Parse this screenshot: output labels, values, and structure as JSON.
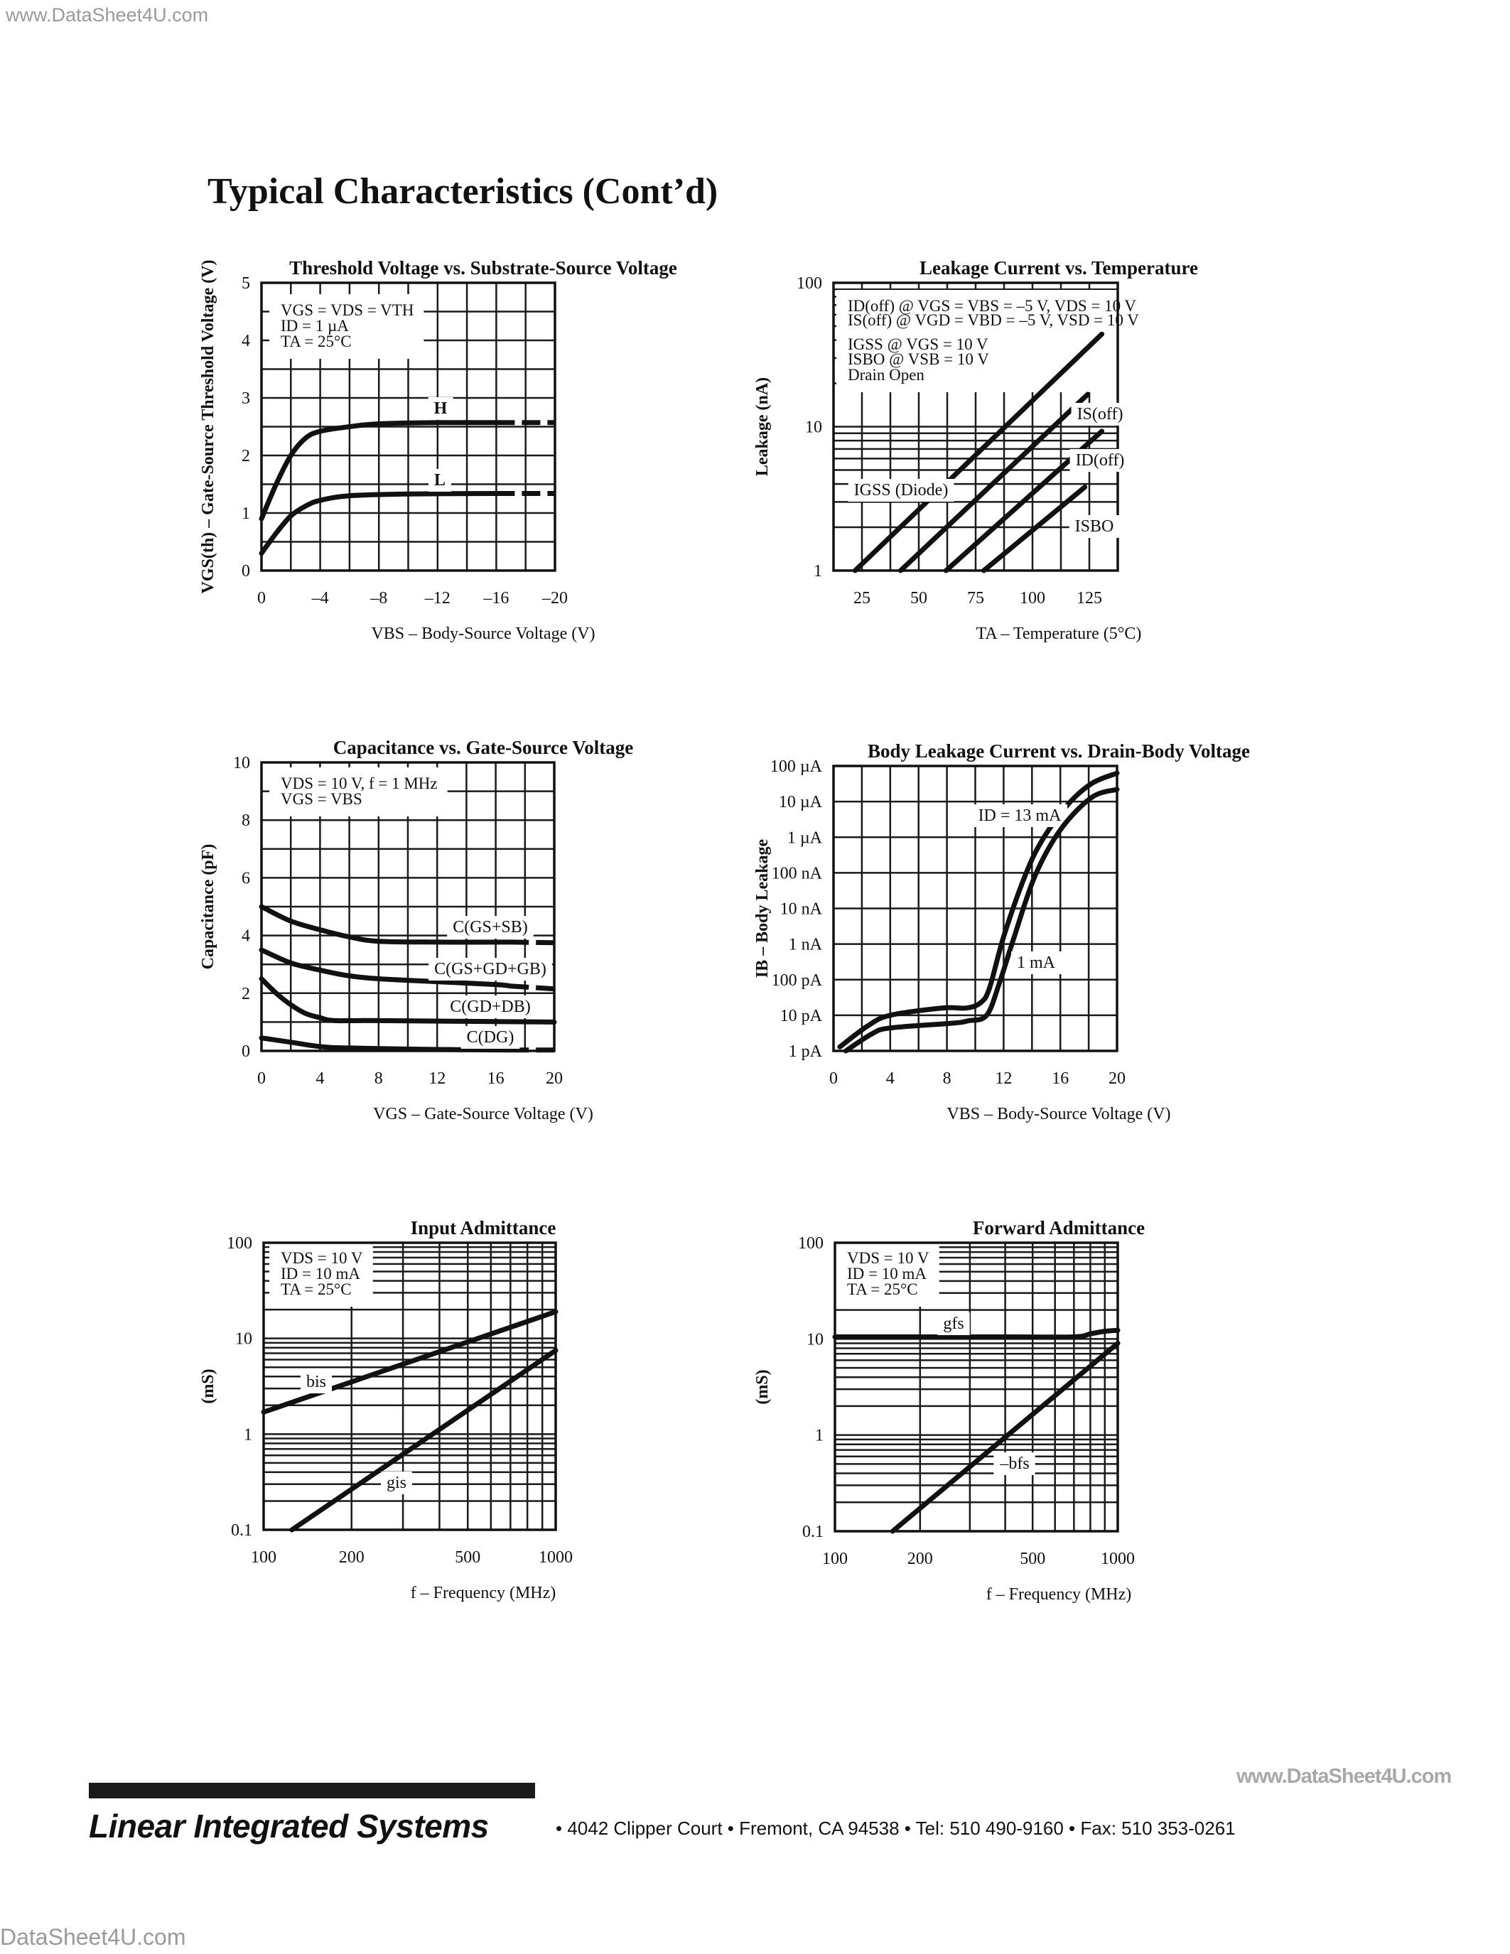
{
  "watermarks": {
    "top": "www.DataSheet4U.com",
    "right": "www.DataSheet4U.com",
    "bottom": "DataSheet4U.com"
  },
  "page_title": "Typical Characteristics (Cont’d)",
  "footer": {
    "company": "Linear Integrated Systems",
    "address": "• 4042 Clipper Court  •  Fremont, CA 94538  •  Tel: 510 490-9160  •  Fax: 510 353-0261"
  },
  "chart_data": [
    {
      "type": "line",
      "title": "Threshold Voltage vs. Substrate-Source Voltage",
      "xlabel": "VBS – Body-Source Voltage (V)",
      "ylabel": "VGS(th) – Gate-Source Threshold Voltage (V)",
      "xscale": "linear",
      "yscale": "linear",
      "xlim": [
        0,
        -20
      ],
      "ylim": [
        0,
        5
      ],
      "grid": true,
      "grid_x_step": 2,
      "grid_y_step": 0.5,
      "x_ticks": [
        {
          "value": 0,
          "label": "0"
        },
        {
          "value": -4,
          "label": "–4"
        },
        {
          "value": -8,
          "label": "–8"
        },
        {
          "value": -12,
          "label": "–12"
        },
        {
          "value": -16,
          "label": "–16"
        },
        {
          "value": -20,
          "label": "–20"
        }
      ],
      "y_ticks": [
        {
          "value": 0,
          "label": "0"
        },
        {
          "value": 1,
          "label": "1"
        },
        {
          "value": 2,
          "label": "2"
        },
        {
          "value": 3,
          "label": "3"
        },
        {
          "value": 4,
          "label": "4"
        },
        {
          "value": 5,
          "label": "5"
        }
      ],
      "conditions": [
        "VGS = VDS = VTH",
        "ID = 1 µA",
        "TA = 25°C"
      ],
      "series": [
        {
          "name": "H",
          "points": [
            [
              0,
              0.9
            ],
            [
              -1,
              1.5
            ],
            [
              -2,
              2.0
            ],
            [
              -3,
              2.3
            ],
            [
              -4,
              2.42
            ],
            [
              -6,
              2.5
            ],
            [
              -8,
              2.55
            ],
            [
              -12,
              2.57
            ],
            [
              -16,
              2.57
            ]
          ],
          "dashed": [
            [
              -16,
              2.57
            ],
            [
              -20,
              2.57
            ]
          ]
        },
        {
          "name": "L",
          "points": [
            [
              0,
              0.3
            ],
            [
              -1,
              0.65
            ],
            [
              -2,
              0.95
            ],
            [
              -3,
              1.12
            ],
            [
              -4,
              1.22
            ],
            [
              -6,
              1.3
            ],
            [
              -10,
              1.33
            ],
            [
              -16,
              1.34
            ]
          ],
          "dashed": [
            [
              -16,
              1.34
            ],
            [
              -20,
              1.34
            ]
          ]
        }
      ]
    },
    {
      "type": "line",
      "title": "Leakage Current vs. Temperature",
      "xlabel": "TA – Temperature (5°C)",
      "ylabel": "Leakage (nA)",
      "xscale": "linear",
      "yscale": "log",
      "xlim": [
        12.5,
        137.5
      ],
      "ylim": [
        1,
        100
      ],
      "grid": true,
      "grid_x_step": 12.5,
      "x_ticks": [
        {
          "value": 25,
          "label": "25"
        },
        {
          "value": 50,
          "label": "50"
        },
        {
          "value": 75,
          "label": "75"
        },
        {
          "value": 100,
          "label": "100"
        },
        {
          "value": 125,
          "label": "125"
        }
      ],
      "y_ticks": [
        {
          "value": 1,
          "label": "1"
        },
        {
          "value": 10,
          "label": "10"
        },
        {
          "value": 100,
          "label": "100"
        }
      ],
      "conditions": [
        "ID(off) @ VGS = VBS = –5 V, VDS = 10 V",
        "IS(off) @ VGD = VBD = –5 V, VSD = 10 V",
        "IGSS @ VGS = 10 V",
        "ISBO @ VSB = 10 V",
        "Drain Open"
      ],
      "series": [
        {
          "name": "IGSS (Diode)",
          "points": [
            [
              22,
              1
            ],
            [
              130.5,
              44
            ]
          ]
        },
        {
          "name": "IS(off)",
          "points": [
            [
              42,
              1
            ],
            [
              124.3,
              16.8
            ]
          ]
        },
        {
          "name": "ID(off)",
          "points": [
            [
              62,
              1
            ],
            [
              130.5,
              9.3
            ]
          ]
        },
        {
          "name": "ISBO",
          "points": [
            [
              78.6,
              1
            ],
            [
              123,
              3.8
            ]
          ]
        }
      ]
    },
    {
      "type": "line",
      "title": "Capacitance vs. Gate-Source Voltage",
      "xlabel": "VGS – Gate-Source Voltage (V)",
      "ylabel": "Capacitance (pF)",
      "xscale": "linear",
      "yscale": "linear",
      "xlim": [
        0,
        20
      ],
      "ylim": [
        0,
        10
      ],
      "grid": true,
      "grid_x_step": 2,
      "grid_y_step": 1,
      "x_ticks": [
        {
          "value": 0,
          "label": "0"
        },
        {
          "value": 4,
          "label": "4"
        },
        {
          "value": 8,
          "label": "8"
        },
        {
          "value": 12,
          "label": "12"
        },
        {
          "value": 16,
          "label": "16"
        },
        {
          "value": 20,
          "label": "20"
        }
      ],
      "y_ticks": [
        {
          "value": 0,
          "label": "0"
        },
        {
          "value": 2,
          "label": "2"
        },
        {
          "value": 4,
          "label": "4"
        },
        {
          "value": 6,
          "label": "6"
        },
        {
          "value": 8,
          "label": "8"
        },
        {
          "value": 10,
          "label": "10"
        }
      ],
      "conditions": [
        "VDS = 10 V, f = 1 MHz",
        "VGS = VBS"
      ],
      "series": [
        {
          "name": "C(GS+SB)",
          "points": [
            [
              0,
              5
            ],
            [
              2,
              4.5
            ],
            [
              4,
              4.2
            ],
            [
              6,
              3.95
            ],
            [
              8,
              3.8
            ],
            [
              12,
              3.77
            ],
            [
              17,
              3.77
            ]
          ],
          "dashed": [
            [
              17,
              3.77
            ],
            [
              20,
              3.75
            ]
          ]
        },
        {
          "name": "C(GS+GD+GB)",
          "points": [
            [
              0,
              3.5
            ],
            [
              2,
              3.05
            ],
            [
              4,
              2.8
            ],
            [
              6,
              2.6
            ],
            [
              8,
              2.5
            ],
            [
              12,
              2.4
            ],
            [
              16,
              2.3
            ],
            [
              17,
              2.25
            ]
          ],
          "dashed": [
            [
              17,
              2.25
            ],
            [
              20,
              2.15
            ]
          ]
        },
        {
          "name": "C(GD+DB)",
          "points": [
            [
              0,
              2.5
            ],
            [
              1,
              2.0
            ],
            [
              2,
              1.6
            ],
            [
              3,
              1.3
            ],
            [
              4,
              1.15
            ],
            [
              5,
              1.05
            ],
            [
              8,
              1.05
            ],
            [
              20,
              1.0
            ]
          ]
        },
        {
          "name": "C(DG)",
          "points": [
            [
              0,
              0.45
            ],
            [
              2,
              0.3
            ],
            [
              4,
              0.15
            ],
            [
              6,
              0.1
            ],
            [
              12,
              0.05
            ],
            [
              17,
              0.03
            ]
          ],
          "dashed": [
            [
              17,
              0.03
            ],
            [
              20,
              0.03
            ]
          ]
        }
      ]
    },
    {
      "type": "line",
      "title": "Body Leakage Current vs. Drain-Body Voltage",
      "xlabel": "VBS – Body-Source Voltage (V)",
      "ylabel": "IB – Body Leakage",
      "xscale": "linear",
      "yscale": "log",
      "xlim": [
        0,
        20
      ],
      "ylim": [
        1e-12,
        0.0001
      ],
      "grid": true,
      "grid_x_step": 2,
      "grid_y": "decades",
      "x_ticks": [
        {
          "value": 0,
          "label": "0"
        },
        {
          "value": 4,
          "label": "4"
        },
        {
          "value": 8,
          "label": "8"
        },
        {
          "value": 12,
          "label": "12"
        },
        {
          "value": 16,
          "label": "16"
        },
        {
          "value": 20,
          "label": "20"
        }
      ],
      "y_ticks": [
        {
          "value": 1e-12,
          "label": "1 pA"
        },
        {
          "value": 1e-11,
          "label": "10 pA"
        },
        {
          "value": 1e-10,
          "label": "100 pA"
        },
        {
          "value": 1e-09,
          "label": "1 nA"
        },
        {
          "value": 1e-08,
          "label": "10 nA"
        },
        {
          "value": 1e-07,
          "label": "100 nA"
        },
        {
          "value": 1e-06,
          "label": "1 µA"
        },
        {
          "value": 1e-05,
          "label": "10 µA"
        },
        {
          "value": 0.0001,
          "label": "100 µA"
        }
      ],
      "series": [
        {
          "name": "ID = 13 mA",
          "points": [
            [
              0.45,
              1.3e-12
            ],
            [
              2.4,
              5e-12
            ],
            [
              4,
              1e-11
            ],
            [
              7.7,
              1.6e-11
            ],
            [
              9.4,
              1.6e-11
            ],
            [
              10.4,
              2.3e-11
            ],
            [
              11.0,
              5.8e-11
            ],
            [
              12.0,
              1.6e-09
            ],
            [
              13.5,
              8e-08
            ],
            [
              14.7,
              8e-07
            ],
            [
              16.5,
              8e-06
            ],
            [
              18.2,
              3.2e-05
            ],
            [
              20,
              6.3e-05
            ]
          ]
        },
        {
          "name": "1 mA",
          "points": [
            [
              0.87,
              1e-12
            ],
            [
              2.7,
              3e-12
            ],
            [
              4,
              4.4e-12
            ],
            [
              8.4,
              6e-12
            ],
            [
              9.5,
              7e-12
            ],
            [
              10.8,
              1e-11
            ],
            [
              11.7,
              8e-11
            ],
            [
              12.7,
              1.4e-09
            ],
            [
              14.2,
              8e-08
            ],
            [
              16.0,
              1.6e-06
            ],
            [
              18.2,
              1.3e-05
            ],
            [
              20,
              2.2e-05
            ]
          ]
        }
      ]
    },
    {
      "type": "line",
      "title": "Input Admittance",
      "xlabel": "f – Frequency (MHz)",
      "ylabel": "(mS)",
      "xscale": "log",
      "yscale": "log",
      "xlim": [
        100,
        1000
      ],
      "ylim": [
        0.1,
        100
      ],
      "grid": true,
      "x_ticks": [
        {
          "value": 100,
          "label": "100"
        },
        {
          "value": 200,
          "label": "200"
        },
        {
          "value": 500,
          "label": "500"
        },
        {
          "value": 1000,
          "label": "1000"
        }
      ],
      "y_ticks": [
        {
          "value": 0.1,
          "label": "0.1"
        },
        {
          "value": 1,
          "label": "1"
        },
        {
          "value": 10,
          "label": "10"
        },
        {
          "value": 100,
          "label": "100"
        }
      ],
      "conditions": [
        "VDS = 10 V",
        "ID = 10 mA",
        "TA = 25°C"
      ],
      "series": [
        {
          "name": "bis",
          "points": [
            [
              100,
              1.7
            ],
            [
              1000,
              19
            ]
          ]
        },
        {
          "name": "gis",
          "points": [
            [
              125,
              0.1
            ],
            [
              1000,
              7.5
            ]
          ]
        }
      ]
    },
    {
      "type": "line",
      "title": "Forward Admittance",
      "xlabel": "f – Frequency (MHz)",
      "ylabel": "(mS)",
      "xscale": "log",
      "yscale": "log",
      "xlim": [
        100,
        1000
      ],
      "ylim": [
        0.1,
        100
      ],
      "grid": true,
      "x_ticks": [
        {
          "value": 100,
          "label": "100"
        },
        {
          "value": 200,
          "label": "200"
        },
        {
          "value": 500,
          "label": "500"
        },
        {
          "value": 1000,
          "label": "1000"
        }
      ],
      "y_ticks": [
        {
          "value": 0.1,
          "label": "0.1"
        },
        {
          "value": 1,
          "label": "1"
        },
        {
          "value": 10,
          "label": "10"
        },
        {
          "value": 100,
          "label": "100"
        }
      ],
      "conditions": [
        "VDS = 10 V",
        "ID = 10 mA",
        "TA = 25°C"
      ],
      "series": [
        {
          "name": "gfs",
          "points": [
            [
              100,
              10.5
            ],
            [
              400,
              10.5
            ],
            [
              700,
              10.5
            ],
            [
              800,
              11.3
            ],
            [
              900,
              12
            ],
            [
              1000,
              12.3
            ]
          ]
        },
        {
          "name": "–bfs",
          "points": [
            [
              160,
              0.1
            ],
            [
              1000,
              9
            ]
          ]
        }
      ]
    }
  ]
}
